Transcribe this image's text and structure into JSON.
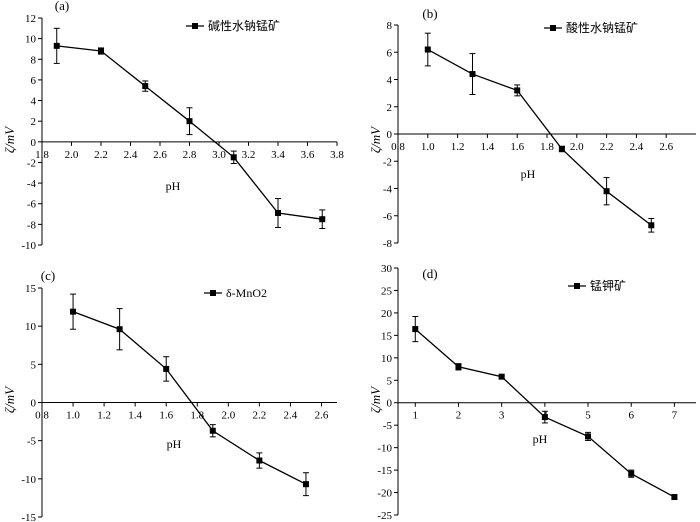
{
  "chart_data": [
    {
      "id": "a",
      "type": "line",
      "panel_label": "(a)",
      "legend": "碱性水钠锰矿",
      "xlabel": "pH",
      "ylabel": "ζ/mV",
      "xlim": [
        1.8,
        3.8
      ],
      "ylim": [
        -10,
        12
      ],
      "xticks": [
        "1.8",
        "2.0",
        "2.2",
        "2.4",
        "2.6",
        "2.8",
        "3.0",
        "3.2",
        "3.4",
        "3.6",
        "3.8"
      ],
      "yticks": [
        "-10",
        "-8",
        "-6",
        "-4",
        "-2",
        "0",
        "2",
        "4",
        "6",
        "8",
        "10",
        "12"
      ],
      "x": [
        1.9,
        2.2,
        2.5,
        2.8,
        3.1,
        3.4,
        3.7
      ],
      "y": [
        9.3,
        8.8,
        5.4,
        2.0,
        -1.5,
        -6.9,
        -7.5
      ],
      "err": [
        1.7,
        0.3,
        0.5,
        1.3,
        0.6,
        1.4,
        0.9
      ]
    },
    {
      "id": "b",
      "type": "line",
      "panel_label": "(b)",
      "legend": "酸性水钠锰矿",
      "xlabel": "pH",
      "ylabel": "ζ/mV",
      "xlim": [
        0.8,
        2.8
      ],
      "ylim": [
        -8,
        8
      ],
      "xticks": [
        "0.8",
        "1.0",
        "1.2",
        "1.4",
        "1.6",
        "1.8",
        "2.0",
        "2.2",
        "2.4",
        "2.6"
      ],
      "yticks": [
        "-8",
        "-6",
        "-4",
        "-2",
        "0",
        "2",
        "4",
        "6",
        "8"
      ],
      "x": [
        1.0,
        1.3,
        1.6,
        1.9,
        2.2,
        2.5
      ],
      "y": [
        6.2,
        4.4,
        3.2,
        -1.1,
        -4.2,
        -6.7
      ],
      "err": [
        1.2,
        1.5,
        0.4,
        0.2,
        1.0,
        0.5
      ]
    },
    {
      "id": "c",
      "type": "line",
      "panel_label": "(c)",
      "legend": "δ-MnO2",
      "xlabel": "pH",
      "ylabel": "ζ/mV",
      "xlim": [
        0.8,
        2.7
      ],
      "ylim": [
        -15,
        15
      ],
      "xticks": [
        "0.8",
        "1.0",
        "1.2",
        "1.4",
        "1.6",
        "1.8",
        "2.0",
        "2.2",
        "2.4",
        "2.6"
      ],
      "yticks": [
        "-15",
        "-10",
        "-5",
        "0",
        "5",
        "10",
        "15"
      ],
      "x": [
        1.0,
        1.3,
        1.6,
        1.9,
        2.2,
        2.5
      ],
      "y": [
        11.9,
        9.6,
        4.4,
        -3.7,
        -7.6,
        -10.7
      ],
      "err": [
        2.3,
        2.7,
        1.6,
        0.8,
        1.0,
        1.5
      ]
    },
    {
      "id": "d",
      "type": "line",
      "panel_label": "(d)",
      "legend": "锰钾矿",
      "xlabel": "pH",
      "ylabel": "ζ/mV",
      "xlim": [
        0.6,
        7.5
      ],
      "ylim": [
        -25,
        30
      ],
      "xticks": [
        "1",
        "2",
        "3",
        "4",
        "5",
        "6",
        "7"
      ],
      "yticks": [
        "-25",
        "-20",
        "-15",
        "-10",
        "-5",
        "0",
        "5",
        "10",
        "15",
        "20",
        "25",
        "30"
      ],
      "x": [
        1,
        2,
        3,
        4,
        5,
        6,
        7
      ],
      "y": [
        16.4,
        8.0,
        5.8,
        -3.2,
        -7.5,
        -15.8,
        -21.0
      ],
      "err": [
        2.8,
        0.7,
        0.4,
        1.3,
        0.9,
        0.8,
        0.3
      ]
    }
  ]
}
